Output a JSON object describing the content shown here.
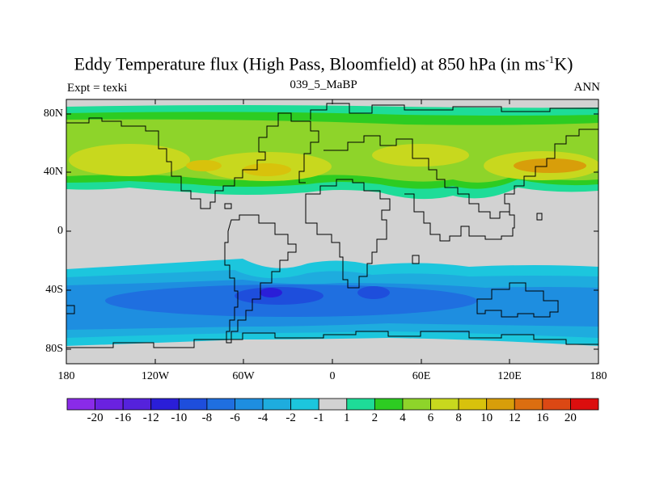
{
  "title": "Eddy Temperature flux (High Pass, Bloomfield) at 850 hPa (in ms",
  "title_sup": "-1",
  "title_tail": "K)",
  "left_label": "Expt = texki",
  "center_label": "039_5_MaBP",
  "right_label": "ANN",
  "y_ticks": [
    "80N",
    "40N",
    "0",
    "40S",
    "80S"
  ],
  "x_ticks": [
    "180",
    "120W",
    "60W",
    "0",
    "60E",
    "120E",
    "180"
  ],
  "colorbar": {
    "labels": [
      "-20",
      "-16",
      "-12",
      "-10",
      "-8",
      "-6",
      "-4",
      "-2",
      "-1",
      "1",
      "2",
      "4",
      "6",
      "8",
      "10",
      "12",
      "16",
      "20"
    ],
    "colors": [
      "#8a2be8",
      "#6a22e0",
      "#5522dc",
      "#2a1ed8",
      "#1e4edc",
      "#1f6fe0",
      "#1e8ee0",
      "#1eacde",
      "#1cc6dd",
      "#d2d2d2",
      "#1edc98",
      "#2dcc22",
      "#8ed42a",
      "#c8d81e",
      "#d8c20c",
      "#d89e0a",
      "#dc6e10",
      "#dc4814",
      "#dc0e0e"
    ]
  }
}
